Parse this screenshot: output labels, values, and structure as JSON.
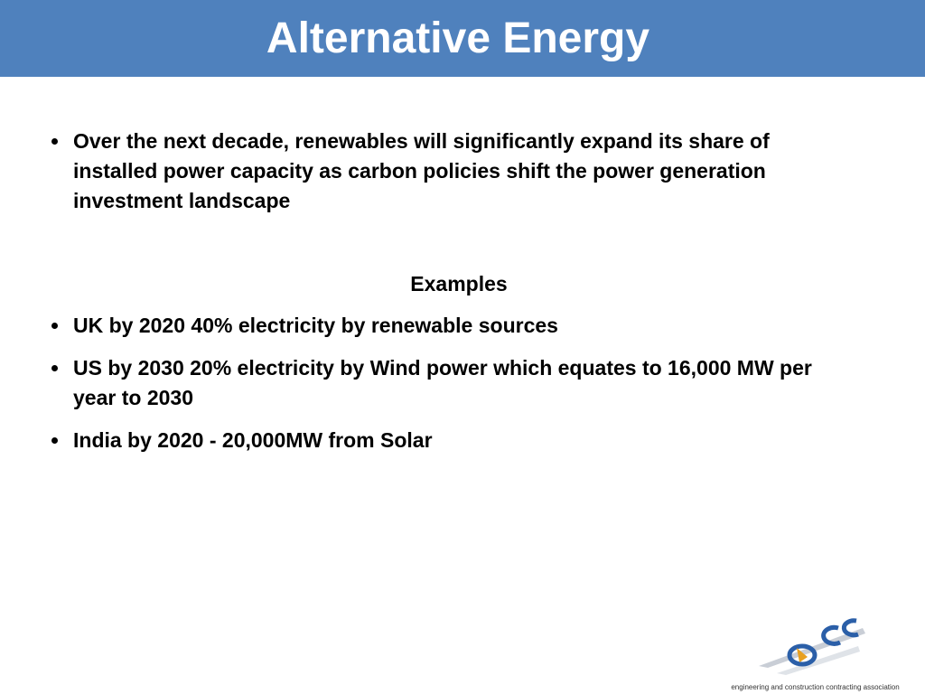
{
  "header": {
    "title": "Alternative Energy"
  },
  "intro_bullets": [
    "Over the next decade, renewables will significantly expand its share of installed power capacity as carbon policies shift the power generation investment landscape"
  ],
  "examples": {
    "heading": "Examples",
    "bullets": [
      "UK by 2020 40% electricity by renewable sources",
      "US by 2030 20% electricity by Wind power which equates to 16,000 MW per year to 2030",
      "India by 2020 - 20,000MW from Solar"
    ]
  },
  "logo": {
    "caption": "engineering and construction contracting association"
  }
}
